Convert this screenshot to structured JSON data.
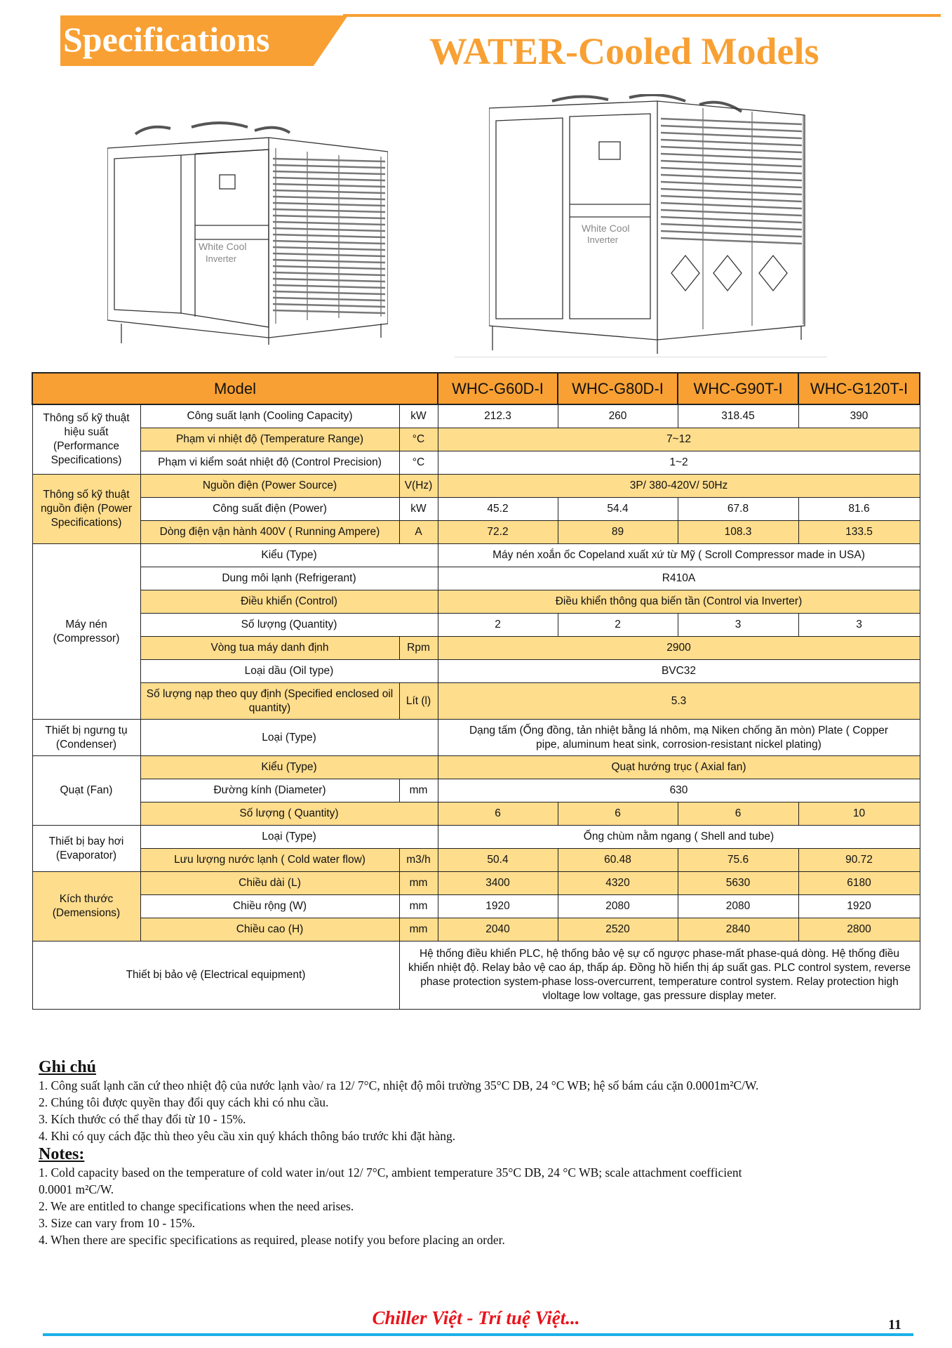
{
  "header": {
    "section_label": "Specifications",
    "title": "WATER-Cooled Models"
  },
  "colors": {
    "accent": "#f8a033",
    "row_highlight": "#fedd8d",
    "slogan": "#e8141c",
    "footer_line": "#1ab0e8"
  },
  "images": {
    "logo_text": "White Cool Inverter"
  },
  "table": {
    "model_label": "Model",
    "models": [
      "WHC-G60D-I",
      "WHC-G80D-I",
      "WHC-G90T-I",
      "WHC-G120T-I"
    ],
    "groups": [
      {
        "label": "Thông số kỹ thuật hiệu suất (Performance Specifications)",
        "bg": "w",
        "rows": [
          {
            "label": "Công suất lạnh (Cooling Capacity)",
            "unit": "kW",
            "values": [
              "212.3",
              "260",
              "318.45",
              "390"
            ],
            "bg": "w"
          },
          {
            "label": "Phạm vi nhiệt độ (Temperature Range)",
            "unit": "°C",
            "value": "7~12",
            "bg": "y"
          },
          {
            "label": "Phạm vi kiểm soát nhiệt độ (Control Precision)",
            "unit": "°C",
            "value": "1~2",
            "bg": "w"
          }
        ]
      },
      {
        "label": "Thông số kỹ thuật nguồn điện (Power Specifications)",
        "bg": "y",
        "rows": [
          {
            "label": "Nguồn điện (Power Source)",
            "unit": "V(Hz)",
            "value": "3P/ 380-420V/ 50Hz",
            "bg": "y"
          },
          {
            "label": "Công suất điện (Power)",
            "unit": "kW",
            "values": [
              "45.2",
              "54.4",
              "67.8",
              "81.6"
            ],
            "bg": "w"
          },
          {
            "label": "Dòng điện vận hành 400V ( Running Ampere)",
            "unit": "A",
            "values": [
              "72.2",
              "89",
              "108.3",
              "133.5"
            ],
            "bg": "y"
          }
        ]
      },
      {
        "label": "Máy nén (Compressor)",
        "bg": "w",
        "rows": [
          {
            "label": "Kiểu (Type)",
            "value": "Máy nén xoắn ốc Copeland xuất xứ từ Mỹ ( Scroll Compressor made in USA)",
            "bg": "w"
          },
          {
            "label": "Dung môi lạnh (Refrigerant)",
            "value": "R410A",
            "bg": "w"
          },
          {
            "label": "Điều khiển (Control)",
            "value": "Điều khiển thông qua biến tần (Control via Inverter)",
            "bg": "y"
          },
          {
            "label": "Số lượng (Quantity)",
            "values": [
              "2",
              "2",
              "3",
              "3"
            ],
            "bg": "w"
          },
          {
            "label": "Vòng tua máy danh định",
            "unit": "Rpm",
            "value": "2900",
            "bg": "y"
          },
          {
            "label": "Loại dầu (Oil type)",
            "value": "BVC32",
            "bg": "w"
          },
          {
            "label": "Số lượng nạp theo quy định (Specified enclosed oil quantity)",
            "unit": "Lít (l)",
            "value": "5.3",
            "bg": "y",
            "tall": true
          }
        ]
      },
      {
        "label": "Thiết bị ngưng tụ (Condenser)",
        "bg": "w",
        "rows": [
          {
            "label": "Loại (Type)",
            "value": "Dạng tấm (Ống đồng, tản nhiệt bằng lá nhôm, mạ Niken chống ăn mòn) Plate ( Copper pipe, aluminum heat sink, corrosion-resistant nickel plating)",
            "bg": "w",
            "tall": true
          }
        ]
      },
      {
        "label": "Quạt (Fan)",
        "bg": "w",
        "rows": [
          {
            "label": "Kiểu (Type)",
            "value": "Quạt hướng trục ( Axial fan)",
            "bg": "y"
          },
          {
            "label": "Đường kính (Diameter)",
            "unit": "mm",
            "value": "630",
            "bg": "w"
          },
          {
            "label": "Số lượng ( Quantity)",
            "values": [
              "6",
              "6",
              "6",
              "10"
            ],
            "bg": "y"
          }
        ]
      },
      {
        "label": "Thiết bị bay hơi (Evaporator)",
        "bg": "w",
        "rows": [
          {
            "label": "Loại (Type)",
            "value": "Ống chùm nằm ngang ( Shell and tube)",
            "bg": "w"
          },
          {
            "label": "Lưu lượng nước lạnh ( Cold water flow)",
            "unit": "m3/h",
            "values": [
              "50.4",
              "60.48",
              "75.6",
              "90.72"
            ],
            "bg": "y"
          }
        ]
      },
      {
        "label": "Kích thước (Demensions)",
        "bg": "y",
        "rows": [
          {
            "label": "Chiều dài (L)",
            "unit": "mm",
            "values": [
              "3400",
              "4320",
              "5630",
              "6180"
            ],
            "bg": "y"
          },
          {
            "label": "Chiều rộng (W)",
            "unit": "mm",
            "values": [
              "1920",
              "2080",
              "2080",
              "1920"
            ],
            "bg": "w"
          },
          {
            "label": "Chiều cao (H)",
            "unit": "mm",
            "values": [
              "2040",
              "2520",
              "2840",
              "2800"
            ],
            "bg": "y"
          }
        ]
      }
    ],
    "electrical": {
      "label": "Thiết bị bảo vệ (Electrical equipment)",
      "value": "Hệ thống điều khiển PLC, hệ thống bảo vệ sự cố ngược phase-mất phase-quá dòng. Hệ thống điều khiển nhiệt độ. Relay bảo vệ cao áp, thấp áp. Đồng hồ hiển thị áp suất gas. PLC control system, reverse phase protection system-phase loss-overcurrent, temperature control system. Relay protection high vloltage low voltage, gas pressure display meter."
    }
  },
  "notes_vi": {
    "heading": "Ghi chú",
    "items": [
      "1. Công suất lạnh căn cứ theo nhiệt độ của nước lạnh vào/ ra 12/ 7°C, nhiệt độ môi trường 35°C DB, 24 °C WB; hệ số bám cáu cặn 0.0001m²C/W.",
      "2. Chúng tôi được quyền thay đổi quy cách khi có nhu cầu.",
      "3. Kích thước có thể thay đổi từ 10 - 15%.",
      "4. Khi có quy cách đặc thù theo yêu cầu xin quý khách thông báo trước khi đặt hàng."
    ]
  },
  "notes_en": {
    "heading": "Notes:",
    "items": [
      "1. Cold capacity based on the temperature of cold water in/out 12/ 7°C, ambient temperature 35°C DB, 24 °C WB; scale attachment coefficient",
      "0.0001 m²C/W.",
      "2. We are entitled to change specifications when the need arises.",
      "3. Size can vary from 10 - 15%.",
      "4. When there are specific specifications as required, please notify you before placing an order."
    ]
  },
  "footer": {
    "slogan": "Chiller Việt - Trí tuệ Việt...",
    "page_number": "11"
  }
}
